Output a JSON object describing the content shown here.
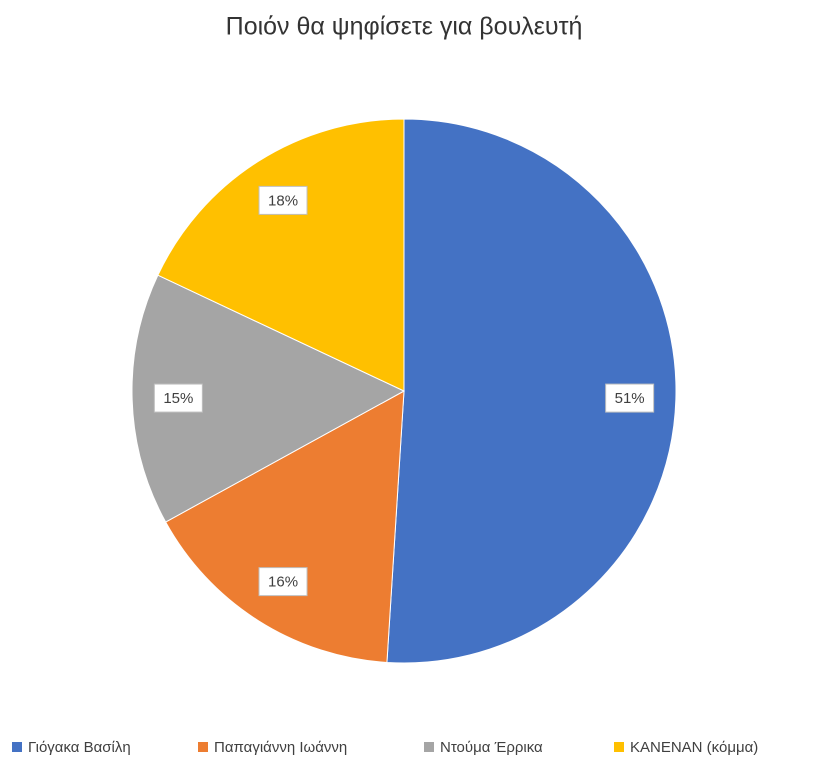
{
  "chart_data": {
    "type": "pie",
    "title": "Ποιόν θα ψηφίσετε για βουλευτή",
    "categories": [
      "Γιόγακα Βασίλη",
      "Παπαγιάννη Ιωάννη",
      "Ντούμα Έρρικα",
      "ΚΑΝΕΝΑΝ (κόμμα)"
    ],
    "values": [
      51,
      16,
      15,
      18
    ],
    "value_labels": [
      "51%",
      "16%",
      "15%",
      "18%"
    ],
    "colors": [
      "#4472c4",
      "#ed7d31",
      "#a5a5a5",
      "#ffc000"
    ],
    "legend": "bottom"
  }
}
